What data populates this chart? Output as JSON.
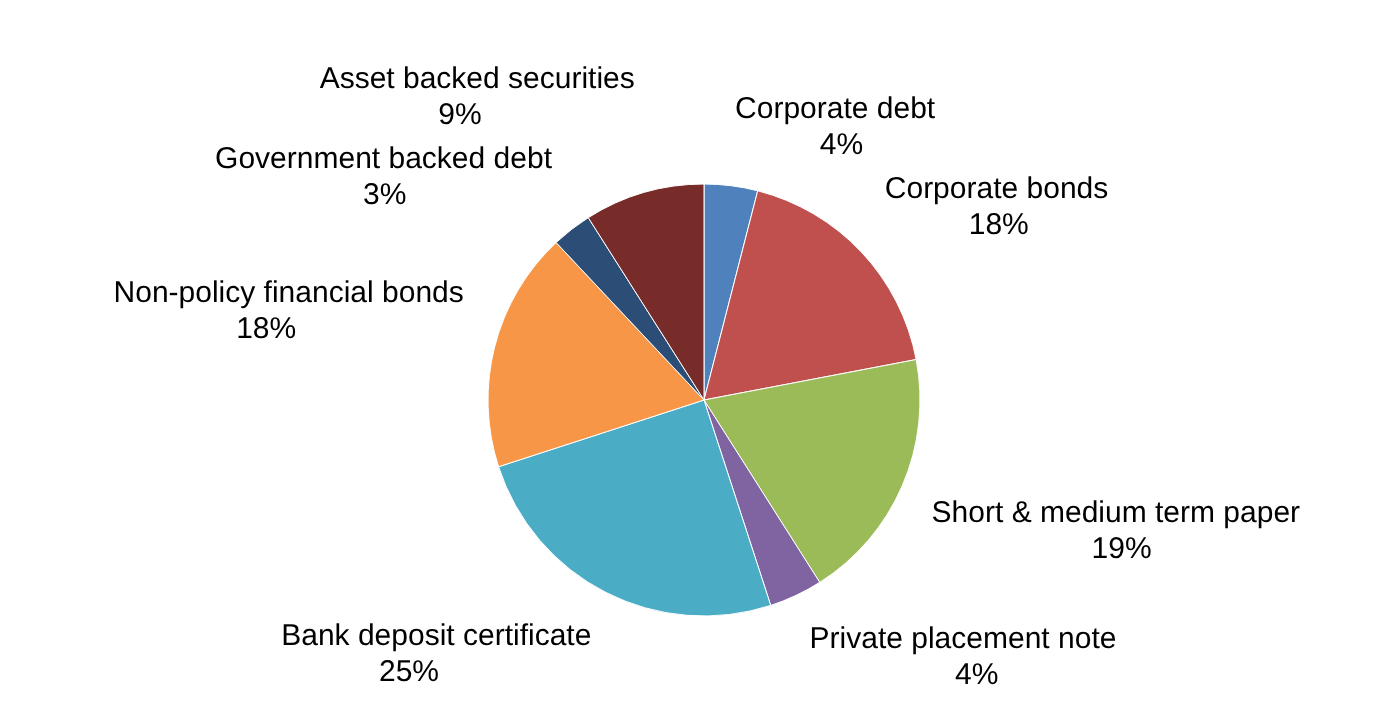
{
  "chart_data": {
    "type": "pie",
    "categories": [
      "Corporate debt",
      "Corporate bonds",
      "Short & medium term paper",
      "Private placement note",
      "Bank deposit certificate",
      "Non-policy financial bonds",
      "Government backed debt",
      "Asset backed securities"
    ],
    "values": [
      4,
      18,
      19,
      4,
      25,
      18,
      3,
      9
    ],
    "colors": [
      "#4f81bd",
      "#c0504d",
      "#9bbb59",
      "#8064a2",
      "#4bacc6",
      "#f79646",
      "#2c4d75",
      "#772c2a"
    ],
    "value_labels": [
      "4%",
      "18%",
      "19%",
      "4%",
      "25%",
      "18%",
      "3%",
      "9%"
    ]
  }
}
